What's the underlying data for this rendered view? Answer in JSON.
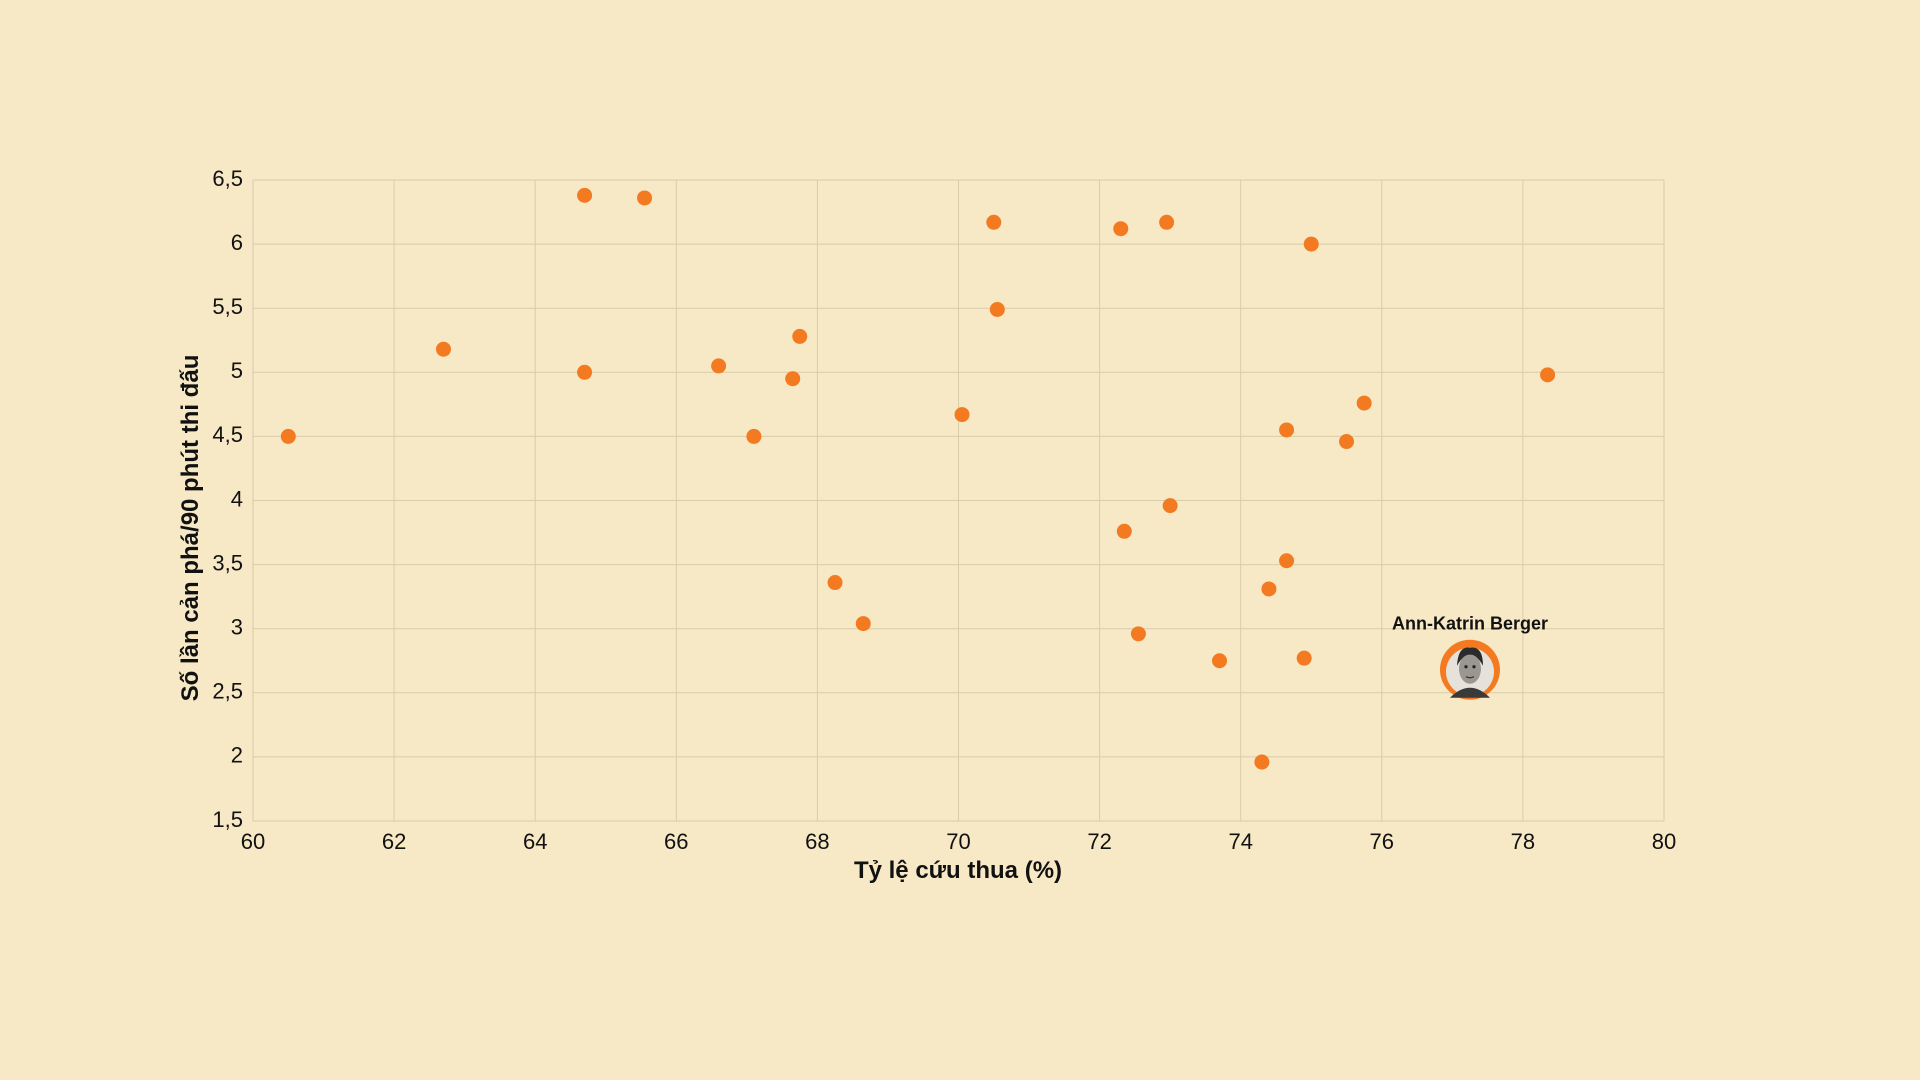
{
  "chart_data": {
    "type": "scatter",
    "title": "",
    "xlabel": "Tỷ lệ cứu thua (%)",
    "ylabel": "Số lần cản phá/90 phút thi đấu",
    "xlim": [
      60,
      80
    ],
    "ylim": [
      1.5,
      6.5
    ],
    "x_ticks": [
      60,
      62,
      64,
      66,
      68,
      70,
      72,
      74,
      76,
      78,
      80
    ],
    "x_tick_labels": [
      "60",
      "62",
      "64",
      "66",
      "68",
      "70",
      "72",
      "74",
      "76",
      "78",
      "80"
    ],
    "y_ticks": [
      1.5,
      2,
      2.5,
      3,
      3.5,
      4,
      4.5,
      5,
      5.5,
      6,
      6.5
    ],
    "y_tick_labels": [
      "1,5",
      "2",
      "2,5",
      "3",
      "3,5",
      "4",
      "4,5",
      "5",
      "5,5",
      "6",
      "6,5"
    ],
    "grid": true,
    "colors": {
      "background": "#f7e9c6",
      "point": "#f47a21",
      "grid": "#d9ccab",
      "text": "#111111"
    },
    "points": [
      {
        "x": 60.5,
        "y": 4.5
      },
      {
        "x": 62.7,
        "y": 5.18
      },
      {
        "x": 64.7,
        "y": 6.38
      },
      {
        "x": 64.7,
        "y": 5.0
      },
      {
        "x": 65.55,
        "y": 6.36
      },
      {
        "x": 66.6,
        "y": 5.05
      },
      {
        "x": 67.1,
        "y": 4.5
      },
      {
        "x": 67.65,
        "y": 4.95
      },
      {
        "x": 67.75,
        "y": 5.28
      },
      {
        "x": 68.25,
        "y": 3.36
      },
      {
        "x": 68.65,
        "y": 3.04
      },
      {
        "x": 70.05,
        "y": 4.67
      },
      {
        "x": 70.5,
        "y": 6.17
      },
      {
        "x": 70.55,
        "y": 5.49
      },
      {
        "x": 72.3,
        "y": 6.12
      },
      {
        "x": 72.35,
        "y": 3.76
      },
      {
        "x": 72.55,
        "y": 2.96
      },
      {
        "x": 72.95,
        "y": 6.17
      },
      {
        "x": 73.0,
        "y": 3.96
      },
      {
        "x": 73.7,
        "y": 2.75
      },
      {
        "x": 74.3,
        "y": 1.96
      },
      {
        "x": 74.4,
        "y": 3.31
      },
      {
        "x": 74.65,
        "y": 3.53
      },
      {
        "x": 74.65,
        "y": 4.55
      },
      {
        "x": 74.9,
        "y": 2.77
      },
      {
        "x": 75.0,
        "y": 6.0
      },
      {
        "x": 75.5,
        "y": 4.46
      },
      {
        "x": 75.75,
        "y": 4.76
      },
      {
        "x": 78.35,
        "y": 4.98
      }
    ],
    "highlight": {
      "label": "Ann-Katrin Berger",
      "x": 77.25,
      "y": 2.68
    }
  }
}
